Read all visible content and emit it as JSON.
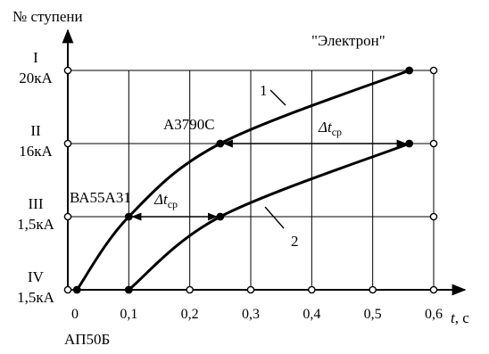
{
  "chart_data": {
    "type": "line",
    "y_axis_title": "№ ступени",
    "x_axis_title": "t",
    "x_axis_unit": ", с",
    "x_ticks": [
      "0",
      "0,1",
      "0,2",
      "0,3",
      "0,4",
      "0,5",
      "0,6"
    ],
    "x_tick_values": [
      0,
      0.1,
      0.2,
      0.3,
      0.4,
      0.5,
      0.6
    ],
    "x_range": [
      0,
      0.6
    ],
    "levels": [
      {
        "numeral": "IV",
        "current": "1,5кА",
        "level": 0
      },
      {
        "numeral": "III",
        "current": "1,5кА",
        "level": 1
      },
      {
        "numeral": "II",
        "current": "16кА",
        "level": 2
      },
      {
        "numeral": "I",
        "current": "20кА",
        "level": 3
      }
    ],
    "series": [
      {
        "name": "1",
        "points": [
          [
            0.015,
            0
          ],
          [
            0.1,
            1
          ],
          [
            0.25,
            2
          ],
          [
            0.56,
            3
          ]
        ]
      },
      {
        "name": "2",
        "points": [
          [
            0.1,
            0
          ],
          [
            0.25,
            1
          ],
          [
            0.56,
            2
          ]
        ]
      }
    ],
    "device_labels": {
      "ap": "АП50Б",
      "va": "ВА55А31",
      "a3790": "А3790С",
      "electron": "\"Электрон\""
    },
    "delta_t_symbol": "Δt",
    "delta_t_sub": "ср",
    "grid": true
  }
}
